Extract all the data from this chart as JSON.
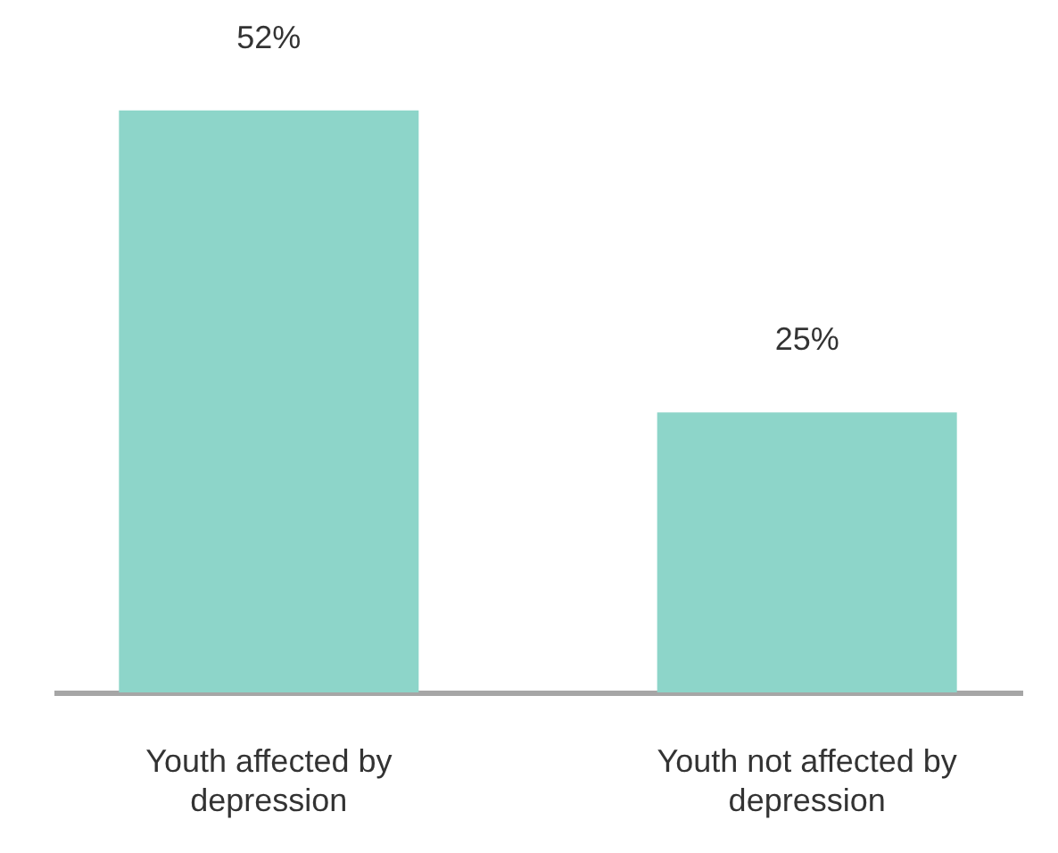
{
  "chart_data": {
    "type": "bar",
    "categories": [
      "Youth affected by depression",
      "Youth not affected by depression"
    ],
    "values": [
      52,
      25
    ],
    "value_labels": [
      "52%",
      "25%"
    ],
    "color": "#8dd5c9",
    "grid": false,
    "tick_labels": "x"
  }
}
